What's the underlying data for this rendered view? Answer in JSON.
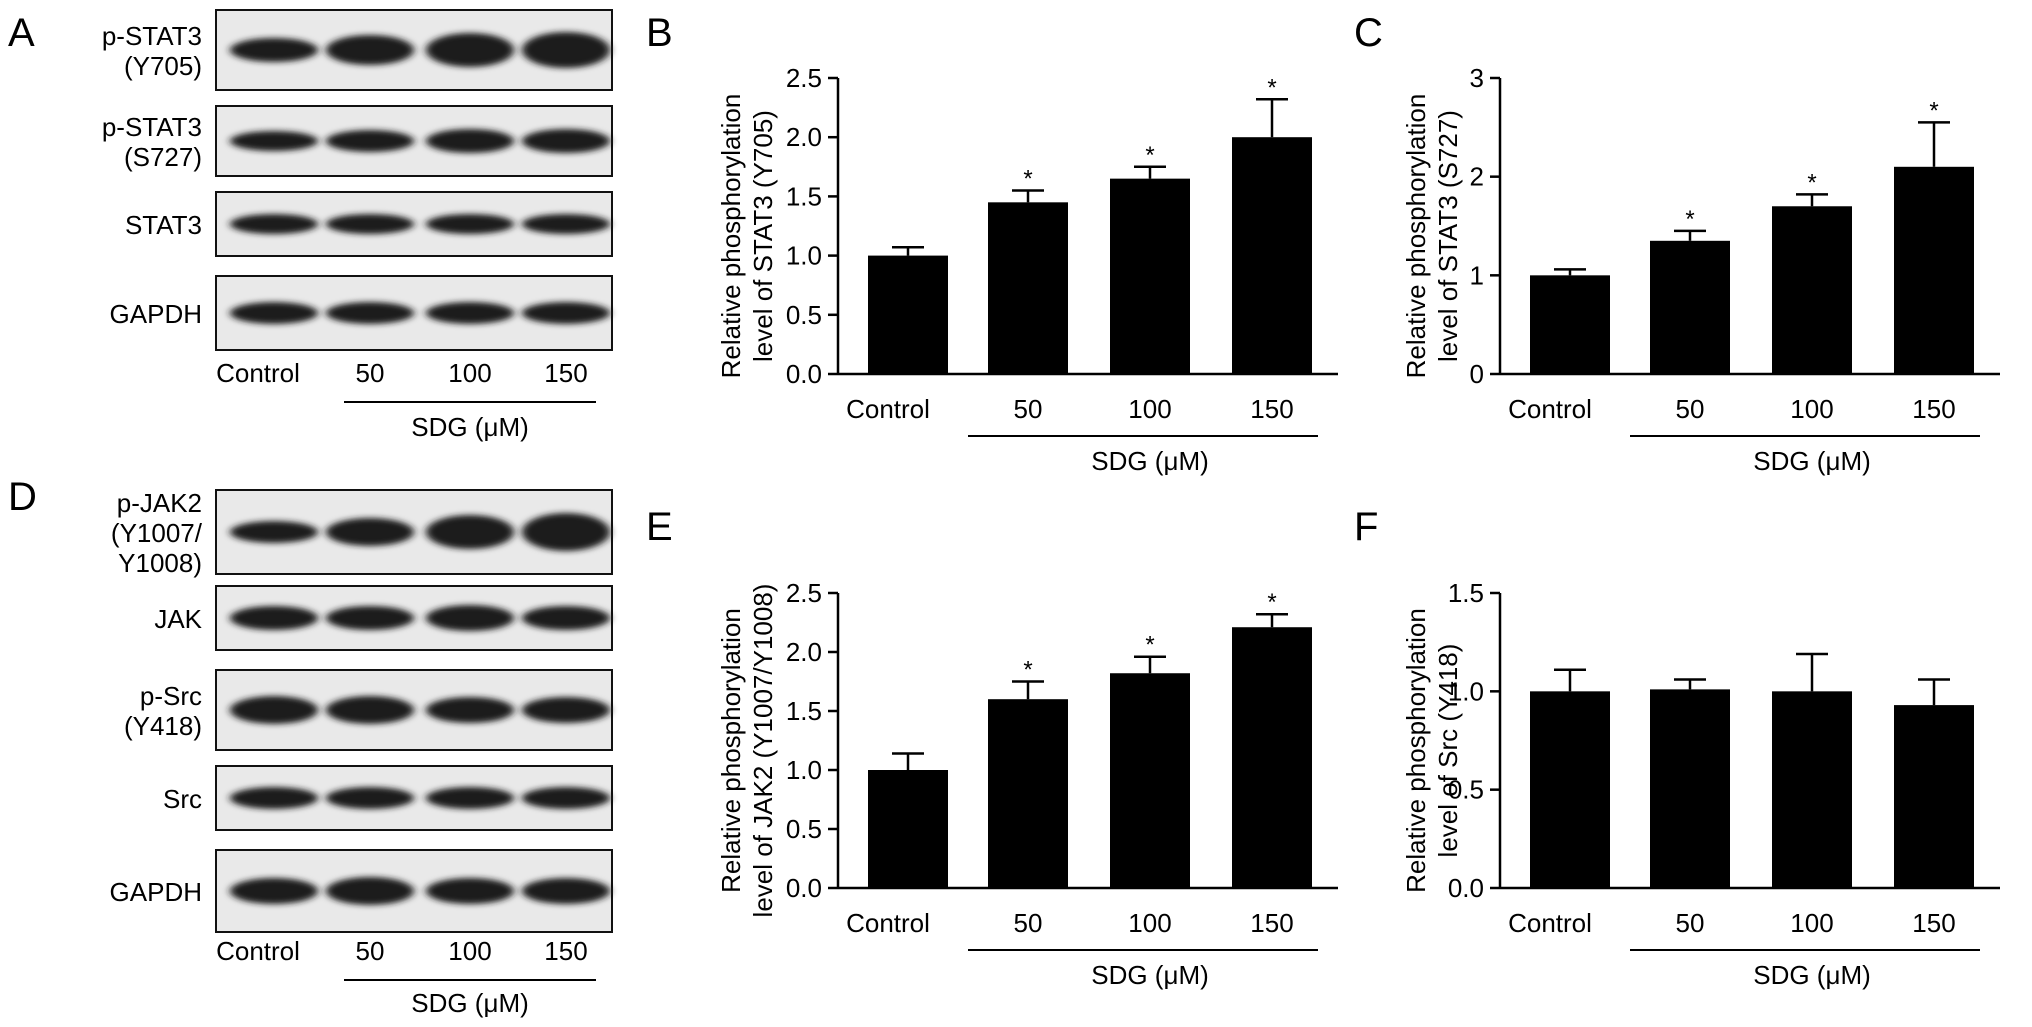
{
  "panel_letters": [
    "A",
    "B",
    "C",
    "D",
    "E",
    "F"
  ],
  "blots": [
    {
      "panel": "A",
      "rows": [
        {
          "label_lines": [
            "p-STAT3",
            "(Y705)"
          ]
        },
        {
          "label_lines": [
            "p-STAT3",
            "(S727)"
          ]
        },
        {
          "label_lines": [
            "STAT3"
          ]
        },
        {
          "label_lines": [
            "GAPDH"
          ]
        }
      ],
      "lanes": [
        "Control",
        "50",
        "100",
        "150"
      ],
      "treatment_label": "SDG (μM)"
    },
    {
      "panel": "D",
      "rows": [
        {
          "label_lines": [
            "p-JAK2",
            "(Y1007/",
            "Y1008)"
          ]
        },
        {
          "label_lines": [
            "JAK"
          ]
        },
        {
          "label_lines": [
            "p-Src",
            "(Y418)"
          ]
        },
        {
          "label_lines": [
            "Src"
          ]
        },
        {
          "label_lines": [
            "GAPDH"
          ]
        }
      ],
      "lanes": [
        "Control",
        "50",
        "100",
        "150"
      ],
      "treatment_label": "SDG (μM)"
    }
  ],
  "chart_data": [
    {
      "panel": "B",
      "type": "bar",
      "categories": [
        "Control",
        "50",
        "100",
        "150"
      ],
      "values": [
        1.0,
        1.45,
        1.65,
        2.0
      ],
      "errors": [
        0.07,
        0.1,
        0.1,
        0.32
      ],
      "significance": [
        "",
        "*",
        "*",
        "*"
      ],
      "ylabel_lines": [
        "Relative phosphorylation",
        "level of STAT3 (Y705)"
      ],
      "ylim": [
        0,
        2.5
      ],
      "yticks": [
        "0.0",
        "0.5",
        "1.0",
        "1.5",
        "2.0",
        "2.5"
      ],
      "group_label": "SDG (μM)",
      "grid": false
    },
    {
      "panel": "C",
      "type": "bar",
      "categories": [
        "Control",
        "50",
        "100",
        "150"
      ],
      "values": [
        1.0,
        1.35,
        1.7,
        2.1
      ],
      "errors": [
        0.06,
        0.1,
        0.12,
        0.45
      ],
      "significance": [
        "",
        "*",
        "*",
        "*"
      ],
      "ylabel_lines": [
        "Relative phosphorylation",
        "level of STAT3 (S727)"
      ],
      "ylim": [
        0,
        3
      ],
      "yticks": [
        "0",
        "1",
        "2",
        "3"
      ],
      "group_label": "SDG (μM)",
      "grid": false
    },
    {
      "panel": "E",
      "type": "bar",
      "categories": [
        "Control",
        "50",
        "100",
        "150"
      ],
      "values": [
        1.0,
        1.6,
        1.82,
        2.21
      ],
      "errors": [
        0.14,
        0.15,
        0.14,
        0.11
      ],
      "significance": [
        "",
        "*",
        "*",
        "*"
      ],
      "ylabel_lines": [
        "Relative phosphorylation",
        "level of JAK2 (Y1007/Y1008)"
      ],
      "ylim": [
        0,
        2.5
      ],
      "yticks": [
        "0.0",
        "0.5",
        "1.0",
        "1.5",
        "2.0",
        "2.5"
      ],
      "group_label": "SDG (μM)",
      "grid": false
    },
    {
      "panel": "F",
      "type": "bar",
      "categories": [
        "Control",
        "50",
        "100",
        "150"
      ],
      "values": [
        1.0,
        1.01,
        1.0,
        0.93
      ],
      "errors": [
        0.11,
        0.05,
        0.19,
        0.13
      ],
      "significance": [
        "",
        "",
        "",
        ""
      ],
      "ylabel_lines": [
        "Relative phosphorylation",
        "level of Src (Y418)"
      ],
      "ylim": [
        0,
        1.5
      ],
      "yticks": [
        "0.0",
        "0.5",
        "1.0",
        "1.5"
      ],
      "group_label": "SDG (μM)",
      "grid": false
    }
  ]
}
